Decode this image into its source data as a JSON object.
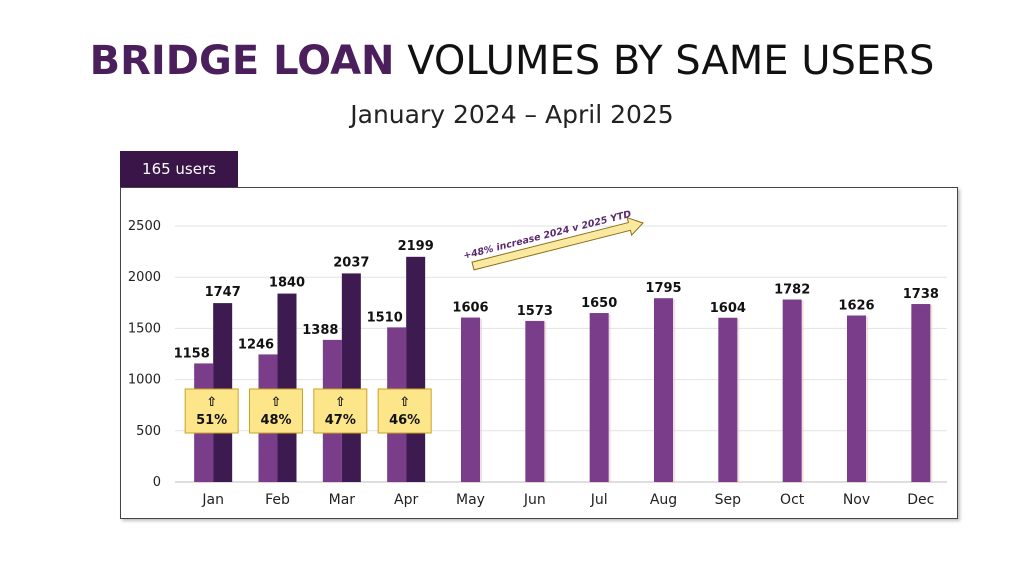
{
  "header": {
    "title_bold": "BRIDGE LOAN",
    "title_rest": "VOLUMES BY SAME USERS",
    "subtitle": "January 2024 – April 2025"
  },
  "users_label": "165 users",
  "annotation": "+48% increase 2024 v 2025 YTD",
  "colors": {
    "series_2024": "#7a3d8a",
    "series_2025": "#3d1a4f",
    "callout_fill": "#fde68a",
    "callout_border": "#c9a227",
    "arrow_fill": "#fce9a0"
  },
  "chart_data": {
    "type": "bar",
    "title": "",
    "xlabel": "",
    "ylabel": "",
    "ylim": [
      0,
      2500
    ],
    "yticks": [
      0,
      500,
      1000,
      1500,
      2000,
      2500
    ],
    "categories": [
      "Jan",
      "Feb",
      "Mar",
      "Apr",
      "May",
      "Jun",
      "Jul",
      "Aug",
      "Sep",
      "Oct",
      "Nov",
      "Dec"
    ],
    "series": [
      {
        "values": [
          1158,
          1246,
          1388,
          1510,
          1606,
          1573,
          1650,
          1795,
          1604,
          1782,
          1626,
          1738
        ]
      },
      {
        "values": [
          1747,
          1840,
          2037,
          2199,
          null,
          null,
          null,
          null,
          null,
          null,
          null,
          null
        ]
      }
    ],
    "callouts": [
      {
        "category": "Jan",
        "arrow": "⇧",
        "text": "51%"
      },
      {
        "category": "Feb",
        "arrow": "⇧",
        "text": "48%"
      },
      {
        "category": "Mar",
        "arrow": "⇧",
        "text": "47%"
      },
      {
        "category": "Apr",
        "arrow": "⇧",
        "text": "46%"
      }
    ],
    "grid": true
  }
}
